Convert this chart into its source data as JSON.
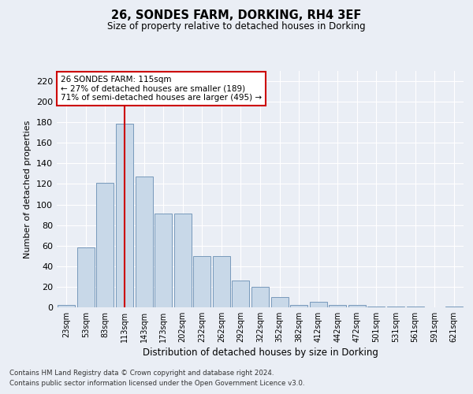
{
  "title1": "26, SONDES FARM, DORKING, RH4 3EF",
  "title2": "Size of property relative to detached houses in Dorking",
  "xlabel": "Distribution of detached houses by size in Dorking",
  "ylabel": "Number of detached properties",
  "categories": [
    "23sqm",
    "53sqm",
    "83sqm",
    "113sqm",
    "143sqm",
    "173sqm",
    "202sqm",
    "232sqm",
    "262sqm",
    "292sqm",
    "322sqm",
    "352sqm",
    "382sqm",
    "412sqm",
    "442sqm",
    "472sqm",
    "501sqm",
    "531sqm",
    "561sqm",
    "591sqm",
    "621sqm"
  ],
  "values": [
    2,
    58,
    121,
    179,
    127,
    91,
    91,
    50,
    50,
    26,
    20,
    10,
    2,
    5,
    2,
    2,
    1,
    1,
    1,
    0,
    1
  ],
  "bar_color": "#c8d8e8",
  "bar_edge_color": "#7799bb",
  "vline_x": 3,
  "vline_color": "#cc0000",
  "annotation_line1": "26 SONDES FARM: 115sqm",
  "annotation_line2": "← 27% of detached houses are smaller (189)",
  "annotation_line3": "71% of semi-detached houses are larger (495) →",
  "annotation_box_color": "#cc0000",
  "ylim": [
    0,
    230
  ],
  "yticks": [
    0,
    20,
    40,
    60,
    80,
    100,
    120,
    140,
    160,
    180,
    200,
    220
  ],
  "footer1": "Contains HM Land Registry data © Crown copyright and database right 2024.",
  "footer2": "Contains public sector information licensed under the Open Government Licence v3.0.",
  "background_color": "#eaeef5",
  "grid_color": "#ffffff"
}
